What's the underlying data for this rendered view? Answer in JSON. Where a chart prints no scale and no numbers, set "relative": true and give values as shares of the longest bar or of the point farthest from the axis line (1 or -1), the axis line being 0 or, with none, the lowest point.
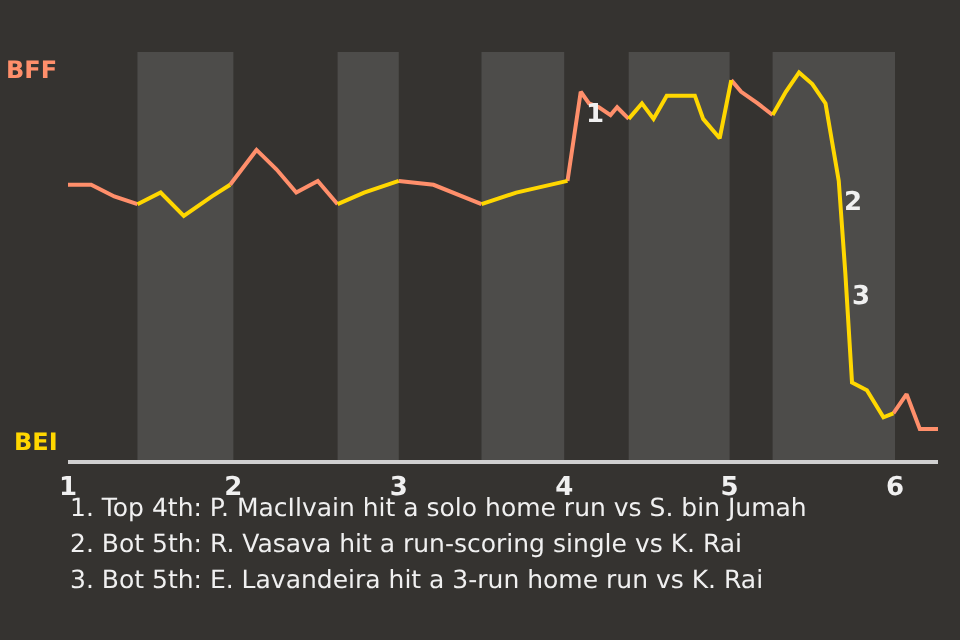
{
  "chart_data": {
    "type": "line",
    "relative": true,
    "xlim": [
      1,
      6.26
    ],
    "xticks": [
      1,
      2,
      3,
      4,
      5,
      6
    ],
    "marker": "none",
    "line_style": "solid",
    "series": [
      {
        "color": "#ff8f6b",
        "x": [
          1,
          1.14,
          1.28,
          1.42,
          null,
          1.98,
          2.14,
          2.26,
          2.38,
          2.51,
          2.63,
          null,
          3.0,
          3.21,
          3.5,
          null,
          4.02,
          4.1,
          4.15,
          4.21,
          4.28,
          4.32,
          4.39,
          null,
          5.01,
          5.07,
          5.17,
          5.26,
          null,
          5.99,
          6.07,
          6.15,
          6.26
        ],
        "values": [
          0.71,
          0.71,
          0.68,
          0.66,
          null,
          0.71,
          0.8,
          0.75,
          0.69,
          0.72,
          0.66,
          null,
          0.72,
          0.71,
          0.66,
          null,
          0.72,
          0.95,
          0.92,
          0.91,
          0.89,
          0.91,
          0.88,
          null,
          0.98,
          0.95,
          0.92,
          0.89,
          null,
          0.12,
          0.17,
          0.08,
          0.08
        ]
      },
      {
        "color": "#ffd700",
        "x": [
          1.42,
          1.56,
          1.7,
          1.87,
          1.98,
          null,
          2.63,
          2.79,
          3.0,
          null,
          3.5,
          3.71,
          4.02,
          null,
          4.39,
          4.47,
          4.54,
          4.62,
          4.79,
          4.84,
          4.94,
          5.01,
          null,
          5.26,
          5.34,
          5.42,
          5.5,
          5.58,
          5.66,
          5.7,
          5.74,
          5.83,
          5.93,
          5.99
        ],
        "values": [
          0.66,
          0.69,
          0.63,
          0.68,
          0.71,
          null,
          0.66,
          0.69,
          0.72,
          null,
          0.66,
          0.69,
          0.72,
          null,
          0.88,
          0.92,
          0.88,
          0.94,
          0.94,
          0.88,
          0.83,
          0.98,
          null,
          0.89,
          0.95,
          1,
          0.97,
          0.92,
          0.72,
          0.48,
          0.2,
          0.18,
          0.11,
          0.12
        ]
      }
    ],
    "bands": [
      {
        "axis": "x",
        "from": 1.42,
        "to": 2,
        "color": "#4d4c4a"
      },
      {
        "axis": "x",
        "from": 2.63,
        "to": 3,
        "color": "#4d4c4a"
      },
      {
        "axis": "x",
        "from": 3.5,
        "to": 4,
        "color": "#4d4c4a"
      },
      {
        "axis": "x",
        "from": 4.39,
        "to": 5,
        "color": "#4d4c4a"
      },
      {
        "axis": "x",
        "from": 5.26,
        "to": 6,
        "color": "#4d4c4a"
      }
    ],
    "annotations": [
      "BFF",
      "BEI",
      {
        "text": "1",
        "x": 4.1,
        "y": 0.95
      },
      {
        "text": "2",
        "x": 5.66,
        "y": 0.72
      },
      {
        "text": "3",
        "x": 5.7,
        "y": 0.48
      },
      "1. Top 4th: P. MacIlvain hit a solo home run vs S. bin Jumah",
      "2. Bot 5th: R. Vasava hit a run-scoring single vs K. Rai",
      "3. Bot 5th: E. Lavandeira hit a 3-run home run vs K. Rai"
    ]
  }
}
